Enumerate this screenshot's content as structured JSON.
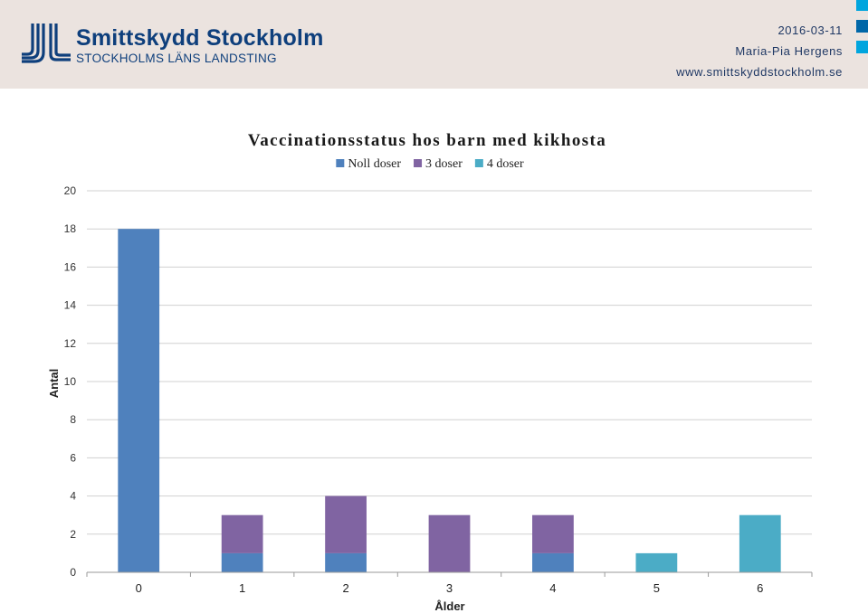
{
  "header": {
    "logo_name": "Smittskydd Stockholm",
    "logo_sub": "STOCKHOLMS LÄNS LANDSTING",
    "date": "2016-03-11",
    "author": "Maria-Pia Hergens",
    "url": "www.smittskyddstockholm.se",
    "brand_color": "#0e3f7c",
    "background": "#ebe3df",
    "edge_colors": [
      "#00a5de",
      "#0067a8",
      "#00a5de"
    ]
  },
  "chart_data": {
    "type": "bar",
    "stacked": true,
    "title": "Vaccinationsstatus hos barn med kikhosta",
    "xlabel": "Ålder",
    "ylabel": "Antal",
    "categories": [
      "0",
      "1",
      "2",
      "3",
      "4",
      "5",
      "6"
    ],
    "series": [
      {
        "name": "Noll doser",
        "color": "#4f81bd",
        "values": [
          18,
          1,
          1,
          0,
          1,
          0,
          0
        ]
      },
      {
        "name": "3 doser",
        "color": "#8064a2",
        "values": [
          0,
          2,
          3,
          3,
          2,
          0,
          0
        ]
      },
      {
        "name": "4 doser",
        "color": "#4bacc6",
        "values": [
          0,
          0,
          0,
          0,
          0,
          1,
          3
        ]
      }
    ],
    "ylim": [
      0,
      20
    ],
    "yticks": [
      0,
      2,
      4,
      6,
      8,
      10,
      12,
      14,
      16,
      18,
      20
    ],
    "grid": true,
    "legend_position": "top"
  }
}
